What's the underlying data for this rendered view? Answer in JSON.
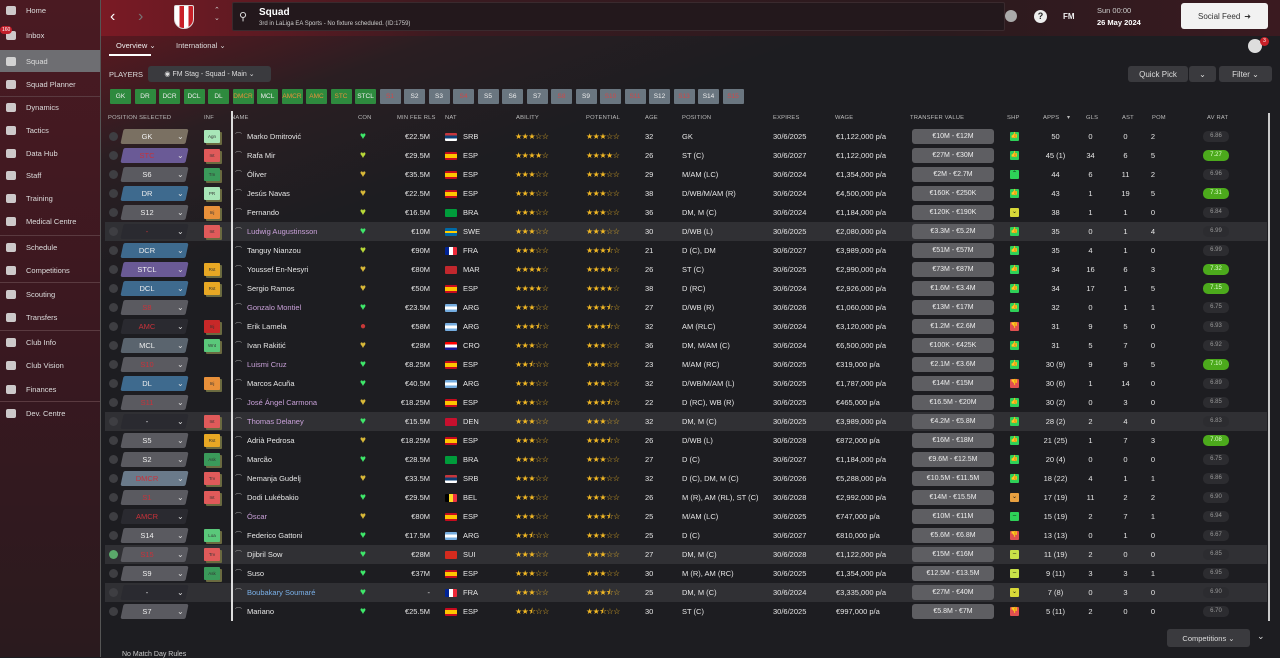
{
  "sidebar": {
    "items": [
      {
        "label": "Home"
      },
      {
        "label": "Inbox",
        "badge": "160"
      },
      {
        "label": "Squad",
        "active": true
      },
      {
        "label": "Squad Planner"
      },
      {
        "label": "Dynamics"
      },
      {
        "label": "Tactics"
      },
      {
        "label": "Data Hub"
      },
      {
        "label": "Staff"
      },
      {
        "label": "Training"
      },
      {
        "label": "Medical Centre"
      },
      {
        "label": "Schedule"
      },
      {
        "label": "Competitions"
      },
      {
        "label": "Scouting"
      },
      {
        "label": "Transfers"
      },
      {
        "label": "Club Info"
      },
      {
        "label": "Club Vision"
      },
      {
        "label": "Finances"
      },
      {
        "label": "Dev. Centre"
      }
    ]
  },
  "header": {
    "title": "Squad",
    "subtitle": "3rd in LaLiga EA Sports - No fixture scheduled. (ID:1759)",
    "fm_label": "FM",
    "time": "Sun 00:00",
    "date": "26 May 2024",
    "social_feed": "Social Feed",
    "notif_count": "3"
  },
  "tabs": [
    {
      "label": "Overview"
    },
    {
      "label": "International"
    }
  ],
  "players_label": "PLAYERS",
  "view_label": "FM Stag - Squad - Main",
  "quick_pick": "Quick Pick",
  "filter": "Filter",
  "position_chips": [
    {
      "l": "GK",
      "s": "g"
    },
    {
      "l": "DR",
      "s": "g"
    },
    {
      "l": "DCR",
      "s": "g"
    },
    {
      "l": "DCL",
      "s": "g"
    },
    {
      "l": "DL",
      "s": "g"
    },
    {
      "l": "DMCR",
      "s": "go"
    },
    {
      "l": "MCL",
      "s": "g"
    },
    {
      "l": "AMCR",
      "s": "go"
    },
    {
      "l": "AMC",
      "s": "go"
    },
    {
      "l": "STC",
      "s": "go"
    },
    {
      "l": "STCL",
      "s": "g"
    },
    {
      "l": "S1",
      "s": "r"
    },
    {
      "l": "S2",
      "s": "n"
    },
    {
      "l": "S3",
      "s": "n"
    },
    {
      "l": "S4",
      "s": "r"
    },
    {
      "l": "S5",
      "s": "n"
    },
    {
      "l": "S6",
      "s": "n"
    },
    {
      "l": "S7",
      "s": "n"
    },
    {
      "l": "S8",
      "s": "r"
    },
    {
      "l": "S9",
      "s": "n"
    },
    {
      "l": "S10",
      "s": "r"
    },
    {
      "l": "S11",
      "s": "r"
    },
    {
      "l": "S12",
      "s": "n"
    },
    {
      "l": "S13",
      "s": "r"
    },
    {
      "l": "S14",
      "s": "n"
    },
    {
      "l": "S15",
      "s": "r"
    }
  ],
  "columns": [
    "POSITION SELECTED",
    "INF",
    "NAME",
    "CON",
    "MIN FEE RLS",
    "NAT",
    "ABILITY",
    "POTENTIAL",
    "AGE",
    "POSITION",
    "EXPIRES",
    "WAGE",
    "TRANSFER VALUE",
    "SHP",
    "APPS",
    "GLS",
    "AST",
    "POM",
    "AV RAT"
  ],
  "colors": {
    "gk": "#7a7062",
    "st": "#6a5a96",
    "sub": "#5a5a60",
    "def": "#3e6a8e",
    "mid": "#5a646e",
    "empty": "#2a2a30",
    "dmid": "#6a7a8a",
    "star": "#f2b824",
    "green": "#2ed158",
    "red_text": "#c8323a"
  },
  "players": [
    {
      "pos": "GK",
      "pt": "gk",
      "inf": "Agn",
      "ic": "#a8e6b8",
      "name": "Marko Dmitrović",
      "con": "#3ee86a",
      "fee": "€22.5M",
      "flag": "srb",
      "nat": "SRB",
      "ab": 3,
      "pot": 3,
      "age": "32",
      "position": "GK",
      "exp": "30/6/2025",
      "wage": "€1,122,000 p/a",
      "tv": "€10M - €12M",
      "shp": "g",
      "apps": "50",
      "gls": "0",
      "ast": "0",
      "pom": "2",
      "rat": "6.86"
    },
    {
      "pos": "STC",
      "pt": "st",
      "red": true,
      "inf": "Int",
      "ic": "#e05a5a",
      "name": "Rafa Mir",
      "con": "#b8d838",
      "fee": "€29.5M",
      "flag": "esp",
      "nat": "ESP",
      "ab": 4,
      "pot": 4,
      "age": "26",
      "position": "ST (C)",
      "exp": "30/6/2027",
      "wage": "€1,122,000 p/a",
      "tv": "€27M - €30M",
      "shp": "g",
      "apps": "45 (1)",
      "gls": "34",
      "ast": "6",
      "pom": "5",
      "rat": "7.27",
      "good": true
    },
    {
      "pos": "S6",
      "pt": "sub",
      "inf": "Tm",
      "ic": "#3a9a5a",
      "name": "Óliver",
      "con": "#d8b838",
      "fee": "€35.5M",
      "flag": "esp",
      "nat": "ESP",
      "ab": 3,
      "pot": 3,
      "age": "29",
      "position": "M/AM (LC)",
      "exp": "30/6/2024",
      "wage": "€1,354,000 p/a",
      "tv": "€2M - €2.7M",
      "shp": "up",
      "apps": "44",
      "gls": "6",
      "ast": "11",
      "pom": "2",
      "rat": "6.96"
    },
    {
      "pos": "DR",
      "pt": "def",
      "inf": "PR",
      "ic": "#a8e6b8",
      "name": "Jesús Navas",
      "con": "#d8b838",
      "fee": "€22.5M",
      "flag": "esp",
      "nat": "ESP",
      "ab": 3,
      "pot": 3,
      "age": "38",
      "position": "D/WB/M/AM (R)",
      "exp": "30/6/2024",
      "wage": "€4,500,000 p/a",
      "tv": "€160K - €250K",
      "shp": "g",
      "apps": "43",
      "gls": "1",
      "ast": "19",
      "pom": "5",
      "rat": "7.31",
      "good": true
    },
    {
      "pos": "S12",
      "pt": "sub",
      "inf": "Inj",
      "ic": "#e8903a",
      "name": "Fernando",
      "con": "#b8d838",
      "fee": "€16.5M",
      "flag": "bra",
      "nat": "BRA",
      "ab": 3,
      "pot": 3,
      "age": "36",
      "position": "DM, M (C)",
      "exp": "30/6/2024",
      "wage": "€1,184,000 p/a",
      "tv": "€120K - €190K",
      "shp": "yd",
      "apps": "38",
      "gls": "1",
      "ast": "1",
      "pom": "0",
      "rat": "6.84"
    },
    {
      "pos": "-",
      "pt": "empty",
      "red": true,
      "inf": "Int",
      "ic": "#e05a5a",
      "name": "Ludwig Augustinsson",
      "nc": "#c8a0d8",
      "con": "#3ee86a",
      "fee": "€10M",
      "flag": "swe",
      "nat": "SWE",
      "ab": 3,
      "pot": 3,
      "age": "30",
      "position": "D/WB (L)",
      "exp": "30/6/2025",
      "wage": "€2,080,000 p/a",
      "tv": "€3.3M - €5.2M",
      "shp": "g",
      "apps": "35",
      "gls": "0",
      "ast": "1",
      "pom": "4",
      "rat": "6.99",
      "hl": true
    },
    {
      "pos": "DCR",
      "pt": "def",
      "inf": "",
      "name": "Tanguy Nianzou",
      "con": "#b8d838",
      "fee": "€90M",
      "flag": "fra",
      "nat": "FRA",
      "ab": 3,
      "pot": 3.5,
      "age": "21",
      "position": "D (C), DM",
      "exp": "30/6/2027",
      "wage": "€3,989,000 p/a",
      "tv": "€51M - €57M",
      "shp": "g",
      "apps": "35",
      "gls": "4",
      "ast": "1",
      "pom": "0",
      "rat": "6.99"
    },
    {
      "pos": "STCL",
      "pt": "st",
      "inf": "Rst",
      "ic": "#e8a824",
      "name": "Youssef En-Nesyri",
      "con": "#d8b838",
      "fee": "€80M",
      "flag": "mar",
      "nat": "MAR",
      "ab": 4,
      "pot": 4,
      "age": "26",
      "position": "ST (C)",
      "exp": "30/6/2025",
      "wage": "€2,990,000 p/a",
      "tv": "€73M - €87M",
      "shp": "g",
      "apps": "34",
      "gls": "16",
      "ast": "6",
      "pom": "3",
      "rat": "7.32",
      "good": true
    },
    {
      "pos": "DCL",
      "pt": "def",
      "inf": "Rst",
      "ic": "#e8a824",
      "name": "Sergio Ramos",
      "con": "#d8b838",
      "fee": "€50M",
      "flag": "esp",
      "nat": "ESP",
      "ab": 4,
      "pot": 4,
      "age": "38",
      "position": "D (RC)",
      "exp": "30/6/2024",
      "wage": "€2,926,000 p/a",
      "tv": "€1.6M - €3.4M",
      "shp": "g",
      "apps": "34",
      "gls": "17",
      "ast": "1",
      "pom": "5",
      "rat": "7.15",
      "good": true
    },
    {
      "pos": "S8",
      "pt": "sub",
      "red": true,
      "inf": "",
      "name": "Gonzalo Montiel",
      "nc": "#c8a0d8",
      "con": "#3ee86a",
      "fee": "€23.5M",
      "flag": "arg",
      "nat": "ARG",
      "ab": 3,
      "pot": 3.5,
      "age": "27",
      "position": "D/WB (R)",
      "exp": "30/6/2026",
      "wage": "€1,060,000 p/a",
      "tv": "€13M - €17M",
      "shp": "g",
      "apps": "32",
      "gls": "0",
      "ast": "1",
      "pom": "1",
      "rat": "6.75"
    },
    {
      "pos": "AMC",
      "pt": "empty",
      "red": true,
      "inf": "Inj",
      "ic": "#c82828",
      "name": "Erik Lamela",
      "con": "#c83838",
      "condot": true,
      "fee": "€58M",
      "flag": "arg",
      "nat": "ARG",
      "ab": 3.5,
      "pot": 3.5,
      "age": "32",
      "position": "AM (RLC)",
      "exp": "30/6/2024",
      "wage": "€3,120,000 p/a",
      "tv": "€1.2M - €2.6M",
      "shp": "r",
      "apps": "31",
      "gls": "9",
      "ast": "5",
      "pom": "0",
      "rat": "6.93"
    },
    {
      "pos": "MCL",
      "pt": "mid",
      "inf": "Wnt",
      "ic": "#5ac87a",
      "name": "Ivan Rakitić",
      "con": "#d8b838",
      "fee": "€28M",
      "flag": "cro",
      "nat": "CRO",
      "ab": 3,
      "pot": 3,
      "age": "36",
      "position": "DM, M/AM (C)",
      "exp": "30/6/2024",
      "wage": "€6,500,000 p/a",
      "tv": "€100K - €425K",
      "shp": "g",
      "apps": "31",
      "gls": "5",
      "ast": "7",
      "pom": "0",
      "rat": "6.92"
    },
    {
      "pos": "S10",
      "pt": "sub",
      "red": true,
      "inf": "",
      "name": "Luismi Cruz",
      "nc": "#c8a0d8",
      "con": "#3ee86a",
      "fee": "€8.25M",
      "flag": "esp",
      "nat": "ESP",
      "ab": 2.5,
      "pot": 3,
      "age": "23",
      "position": "M/AM (RC)",
      "exp": "30/6/2025",
      "wage": "€319,000 p/a",
      "tv": "€2.1M - €3.6M",
      "shp": "g",
      "apps": "30 (9)",
      "gls": "9",
      "ast": "9",
      "pom": "5",
      "rat": "7.10",
      "good": true
    },
    {
      "pos": "DL",
      "pt": "def",
      "inf": "Inj",
      "ic": "#e8903a",
      "name": "Marcos Acuña",
      "con": "#3ee86a",
      "fee": "€40.5M",
      "flag": "arg",
      "nat": "ARG",
      "ab": 3,
      "pot": 3,
      "age": "32",
      "position": "D/WB/M/AM (L)",
      "exp": "30/6/2025",
      "wage": "€1,787,000 p/a",
      "tv": "€14M - €15M",
      "shp": "r",
      "apps": "30 (6)",
      "gls": "1",
      "ast": "14",
      "pom": "0",
      "rat": "6.89"
    },
    {
      "pos": "S11",
      "pt": "sub",
      "red": true,
      "inf": "",
      "name": "José Ángel Carmona",
      "nc": "#c8a0d8",
      "con": "#d8b838",
      "fee": "€18.25M",
      "flag": "esp",
      "nat": "ESP",
      "ab": 3,
      "pot": 3.5,
      "age": "22",
      "position": "D (RC), WB (R)",
      "exp": "30/6/2025",
      "wage": "€465,000 p/a",
      "tv": "€16.5M - €20M",
      "shp": "g",
      "apps": "30 (2)",
      "gls": "0",
      "ast": "3",
      "pom": "0",
      "rat": "6.85"
    },
    {
      "pos": "-",
      "pt": "empty",
      "inf": "Int",
      "ic": "#e05a5a",
      "name": "Thomas Delaney",
      "nc": "#c8a0d8",
      "con": "#3ee86a",
      "fee": "€15.5M",
      "flag": "den",
      "nat": "DEN",
      "ab": 3,
      "pot": 3,
      "age": "32",
      "position": "DM, M (C)",
      "exp": "30/6/2025",
      "wage": "€3,989,000 p/a",
      "tv": "€4.2M - €5.8M",
      "shp": "g",
      "apps": "28 (2)",
      "gls": "2",
      "ast": "4",
      "pom": "0",
      "rat": "6.83",
      "hl": true
    },
    {
      "pos": "S5",
      "pt": "sub",
      "inf": "Rst",
      "ic": "#e8a824",
      "name": "Adrià Pedrosa",
      "con": "#d8b838",
      "fee": "€18.25M",
      "flag": "esp",
      "nat": "ESP",
      "ab": 3,
      "pot": 3.5,
      "age": "26",
      "position": "D/WB (L)",
      "exp": "30/6/2028",
      "wage": "€872,000 p/a",
      "tv": "€16M - €18M",
      "shp": "g",
      "apps": "21 (25)",
      "gls": "1",
      "ast": "7",
      "pom": "3",
      "rat": "7.08",
      "good": true
    },
    {
      "pos": "S2",
      "pt": "sub",
      "inf": "Ask",
      "ic": "#3a9a5a",
      "name": "Marcão",
      "con": "#3ee86a",
      "fee": "€28.5M",
      "flag": "bra",
      "nat": "BRA",
      "ab": 3,
      "pot": 3,
      "age": "27",
      "position": "D (C)",
      "exp": "30/6/2027",
      "wage": "€1,184,000 p/a",
      "tv": "€9.6M - €12.5M",
      "shp": "g",
      "apps": "20 (4)",
      "gls": "0",
      "ast": "0",
      "pom": "0",
      "rat": "6.75"
    },
    {
      "pos": "DMCR",
      "pt": "dmid",
      "red": true,
      "inf": "Trv",
      "ic": "#e05a5a",
      "name": "Nemanja Gudelj",
      "con": "#d8b838",
      "fee": "€33.5M",
      "flag": "srb",
      "nat": "SRB",
      "ab": 3,
      "pot": 3,
      "age": "32",
      "position": "D (C), DM, M (C)",
      "exp": "30/6/2026",
      "wage": "€5,288,000 p/a",
      "tv": "€10.5M - €11.5M",
      "shp": "g",
      "apps": "18 (22)",
      "gls": "4",
      "ast": "1",
      "pom": "1",
      "rat": "6.86"
    },
    {
      "pos": "S1",
      "pt": "sub",
      "red": true,
      "inf": "Int",
      "ic": "#e05a5a",
      "name": "Dodi Lukébakio",
      "con": "#3ee86a",
      "fee": "€29.5M",
      "flag": "bel",
      "nat": "BEL",
      "ab": 3,
      "pot": 3,
      "age": "26",
      "position": "M (R), AM (RL), ST (C)",
      "exp": "30/6/2028",
      "wage": "€2,992,000 p/a",
      "tv": "€14M - €15.5M",
      "shp": "od",
      "apps": "17 (19)",
      "gls": "11",
      "ast": "2",
      "pom": "2",
      "rat": "6.90"
    },
    {
      "pos": "AMCR",
      "pt": "empty",
      "red": true,
      "inf": "",
      "name": "Óscar",
      "nc": "#c8a0d8",
      "con": "#d8b838",
      "fee": "€80M",
      "flag": "esp",
      "nat": "ESP",
      "ab": 3,
      "pot": 3.5,
      "age": "25",
      "position": "M/AM (LC)",
      "exp": "30/6/2025",
      "wage": "€747,000 p/a",
      "tv": "€10M - €11M",
      "shp": "gm",
      "apps": "15 (19)",
      "gls": "2",
      "ast": "7",
      "pom": "1",
      "rat": "6.94"
    },
    {
      "pos": "S14",
      "pt": "sub",
      "inf": "Loa",
      "ic": "#5ac87a",
      "name": "Federico Gattoni",
      "con": "#3ee86a",
      "fee": "€17.5M",
      "flag": "arg",
      "nat": "ARG",
      "ab": 2.5,
      "pot": 3,
      "age": "25",
      "position": "D (C)",
      "exp": "30/6/2027",
      "wage": "€810,000 p/a",
      "tv": "€5.6M - €6.8M",
      "shp": "r",
      "apps": "13 (13)",
      "gls": "0",
      "ast": "1",
      "pom": "0",
      "rat": "6.67"
    },
    {
      "pos": "S15",
      "pt": "sub",
      "red": true,
      "checked": true,
      "inf": "Trv",
      "ic": "#e05a5a",
      "name": "Djibril Sow",
      "con": "#3ee86a",
      "fee": "€28M",
      "flag": "sui",
      "nat": "SUI",
      "ab": 3,
      "pot": 3,
      "age": "27",
      "position": "DM, M (C)",
      "exp": "30/6/2028",
      "wage": "€1,122,000 p/a",
      "tv": "€15M - €16M",
      "shp": "ym",
      "apps": "11 (19)",
      "gls": "2",
      "ast": "0",
      "pom": "0",
      "rat": "6.85",
      "hl": true
    },
    {
      "pos": "S9",
      "pt": "sub",
      "inf": "Ask",
      "ic": "#3a9a5a",
      "name": "Suso",
      "con": "#3ee86a",
      "fee": "€37M",
      "flag": "esp",
      "nat": "ESP",
      "ab": 3,
      "pot": 3,
      "age": "30",
      "position": "M (R), AM (RC)",
      "exp": "30/6/2025",
      "wage": "€1,354,000 p/a",
      "tv": "€12.5M - €13.5M",
      "shp": "ym",
      "apps": "9 (11)",
      "gls": "3",
      "ast": "3",
      "pom": "1",
      "rat": "6.95"
    },
    {
      "pos": "-",
      "pt": "empty",
      "inf": "",
      "name": "Boubakary Soumaré",
      "nc": "#7ab0e8",
      "con": "#3ee86a",
      "fee": "-",
      "flag": "fra",
      "nat": "FRA",
      "ab": 3,
      "pot": 3.5,
      "age": "25",
      "position": "DM, M (C)",
      "exp": "30/6/2024",
      "wage": "€3,335,000 p/a",
      "tv": "€27M - €40M",
      "shp": "yd",
      "apps": "7 (8)",
      "gls": "0",
      "ast": "3",
      "pom": "0",
      "rat": "6.90",
      "hl": true
    },
    {
      "pos": "S7",
      "pt": "sub",
      "inf": "",
      "name": "Mariano",
      "con": "#3ee86a",
      "fee": "€25.5M",
      "flag": "esp",
      "nat": "ESP",
      "ab": 2.5,
      "pot": 2.5,
      "age": "30",
      "position": "ST (C)",
      "exp": "30/6/2025",
      "wage": "€997,000 p/a",
      "tv": "€5.8M - €7M",
      "shp": "r",
      "apps": "5 (11)",
      "gls": "2",
      "ast": "0",
      "pom": "0",
      "rat": "6.70"
    }
  ],
  "footer": {
    "competitions": "Competitions",
    "match_day_rules": "No Match Day Rules"
  }
}
